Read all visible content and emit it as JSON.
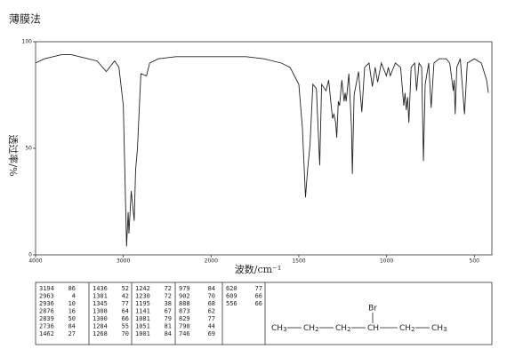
{
  "title": "薄膜法",
  "chart_data": {
    "type": "line",
    "x_label": "波数/cm⁻¹",
    "y_label": "透过率/%",
    "xlim": [
      4000,
      400
    ],
    "ylim": [
      0,
      100
    ],
    "x_break": 2000,
    "x_stretch_below_break": 2,
    "xticks": [
      4000,
      3000,
      2000,
      1500,
      1000,
      500
    ],
    "yticks": [
      0,
      50,
      100
    ],
    "color": "#222",
    "x": [
      4000,
      3900,
      3800,
      3700,
      3600,
      3500,
      3400,
      3300,
      3194,
      3100,
      3050,
      3000,
      2963,
      2945,
      2936,
      2910,
      2876,
      2860,
      2839,
      2800,
      2736,
      2700,
      2600,
      2400,
      2200,
      2000,
      1800,
      1700,
      1600,
      1550,
      1500,
      1480,
      1462,
      1450,
      1436,
      1420,
      1400,
      1381,
      1370,
      1345,
      1330,
      1308,
      1300,
      1290,
      1284,
      1275,
      1268,
      1255,
      1242,
      1236,
      1230,
      1215,
      1200,
      1195,
      1185,
      1160,
      1141,
      1125,
      1100,
      1081,
      1065,
      1051,
      1030,
      1001,
      990,
      979,
      950,
      920,
      902,
      895,
      888,
      880,
      873,
      860,
      840,
      829,
      815,
      800,
      790,
      780,
      760,
      746,
      730,
      700,
      660,
      640,
      620,
      615,
      609,
      600,
      580,
      556,
      540,
      500,
      460,
      430,
      420
    ],
    "values": [
      90,
      92,
      93,
      94,
      94,
      93,
      92,
      91,
      86,
      91,
      88,
      70,
      4,
      20,
      10,
      30,
      16,
      40,
      50,
      85,
      84,
      90,
      92,
      93,
      93,
      93,
      93,
      92,
      90,
      88,
      80,
      60,
      27,
      40,
      52,
      80,
      78,
      42,
      80,
      77,
      82,
      64,
      66,
      62,
      55,
      72,
      70,
      82,
      72,
      76,
      72,
      85,
      60,
      38,
      75,
      86,
      67,
      88,
      90,
      79,
      88,
      81,
      90,
      84,
      88,
      84,
      90,
      88,
      70,
      76,
      68,
      74,
      62,
      88,
      90,
      77,
      90,
      88,
      44,
      80,
      90,
      69,
      90,
      92,
      92,
      90,
      77,
      82,
      66,
      88,
      92,
      66,
      90,
      92,
      90,
      82,
      76
    ]
  },
  "peak_table": {
    "columns": [
      [
        [
          "3194",
          "86"
        ],
        [
          "2963",
          "4"
        ],
        [
          "2936",
          "10"
        ],
        [
          "2876",
          "16"
        ],
        [
          "2839",
          "50"
        ],
        [
          "2736",
          "84"
        ],
        [
          "1462",
          "27"
        ]
      ],
      [
        [
          "1436",
          "52"
        ],
        [
          "1381",
          "42"
        ],
        [
          "1345",
          "77"
        ],
        [
          "1308",
          "64"
        ],
        [
          "1300",
          "66"
        ],
        [
          "1284",
          "55"
        ],
        [
          "1268",
          "70"
        ]
      ],
      [
        [
          "1242",
          "72"
        ],
        [
          "1230",
          "72"
        ],
        [
          "1195",
          "38"
        ],
        [
          "1141",
          "67"
        ],
        [
          "1081",
          "79"
        ],
        [
          "1051",
          "81"
        ],
        [
          "1001",
          "84"
        ]
      ],
      [
        [
          "979",
          "84"
        ],
        [
          "902",
          "70"
        ],
        [
          "888",
          "68"
        ],
        [
          "873",
          "62"
        ],
        [
          "829",
          "77"
        ],
        [
          "790",
          "44"
        ],
        [
          "746",
          "69"
        ]
      ],
      [
        [
          "620",
          "77"
        ],
        [
          "609",
          "66"
        ],
        [
          "556",
          "66"
        ]
      ]
    ]
  },
  "structure": {
    "substituent": "Br",
    "substituent_index": 3,
    "groups": [
      {
        "atom": "CH",
        "sub": "3"
      },
      {
        "atom": "CH",
        "sub": "2"
      },
      {
        "atom": "CH",
        "sub": "2"
      },
      {
        "atom": "CH"
      },
      {
        "atom": "CH",
        "sub": "2"
      },
      {
        "atom": "CH",
        "sub": "3"
      }
    ]
  }
}
